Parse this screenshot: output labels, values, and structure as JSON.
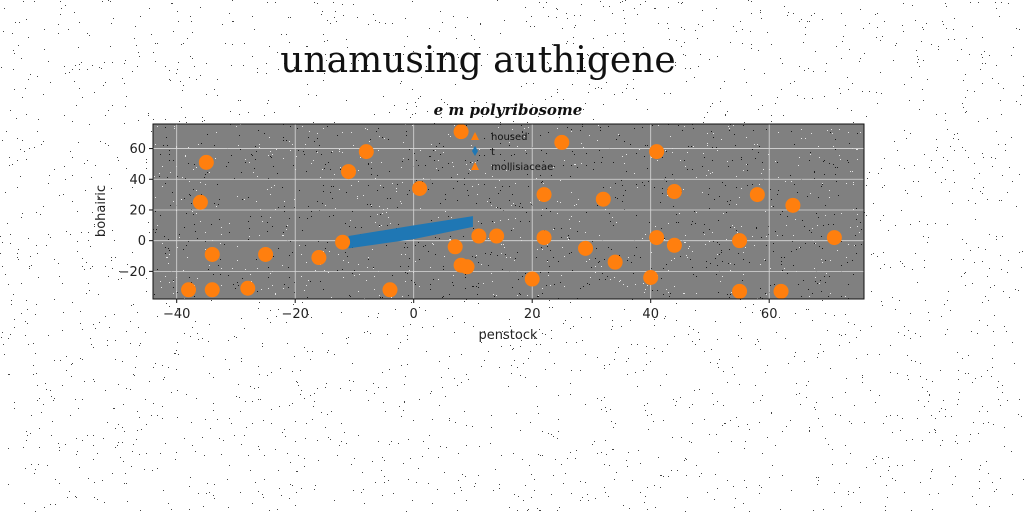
{
  "chart_data": {
    "type": "scatter",
    "title": "unamusing authigene",
    "subtitle": "e m polyribosome",
    "xlabel": "penstock",
    "ylabel": "bohairic",
    "xlim": [
      -44,
      76
    ],
    "ylim": [
      -38,
      76
    ],
    "xticks": [
      -40,
      -20,
      0,
      20,
      40,
      60
    ],
    "yticks": [
      -20,
      0,
      20,
      40,
      60
    ],
    "grid": true,
    "plot_background": "#808080",
    "legend_position": "top-center",
    "legend": [
      "housed",
      "t",
      "mollisiaceae"
    ],
    "series": [
      {
        "name": "t",
        "kind": "filled-band",
        "color": "#1f77b4",
        "x": [
          -11,
          0,
          10
        ],
        "y_low": [
          -5,
          1,
          9
        ],
        "y_high": [
          3,
          10,
          16
        ]
      },
      {
        "name": "mollisiaceae",
        "kind": "scatter",
        "color": "#ff7f0e",
        "points": [
          [
            8,
            71
          ],
          [
            25,
            64
          ],
          [
            -8,
            58
          ],
          [
            41,
            58
          ],
          [
            -35,
            51
          ],
          [
            -11,
            45
          ],
          [
            1,
            34
          ],
          [
            44,
            32
          ],
          [
            58,
            30
          ],
          [
            22,
            30
          ],
          [
            32,
            27
          ],
          [
            -36,
            25
          ],
          [
            64,
            23
          ],
          [
            -12,
            -1
          ],
          [
            7,
            -4
          ],
          [
            11,
            3
          ],
          [
            14,
            3
          ],
          [
            22,
            2
          ],
          [
            41,
            2
          ],
          [
            44,
            -3
          ],
          [
            55,
            0
          ],
          [
            71,
            2
          ],
          [
            -34,
            -9
          ],
          [
            -25,
            -9
          ],
          [
            29,
            -5
          ],
          [
            -16,
            -11
          ],
          [
            8,
            -16
          ],
          [
            9,
            -17
          ],
          [
            34,
            -14
          ],
          [
            20,
            -25
          ],
          [
            40,
            -24
          ],
          [
            -38,
            -32
          ],
          [
            -34,
            -32
          ],
          [
            -28,
            -31
          ],
          [
            -4,
            -32
          ],
          [
            55,
            -33
          ],
          [
            62,
            -33
          ]
        ]
      }
    ]
  }
}
